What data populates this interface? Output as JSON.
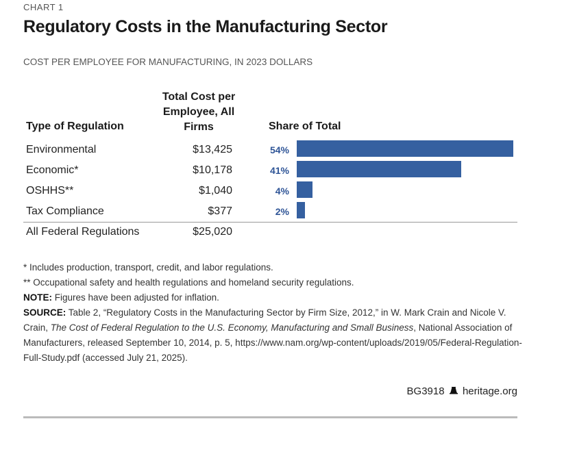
{
  "kicker": "CHART 1",
  "title": "Regulatory Costs in the Manufacturing Sector",
  "subtitle": "COST PER EMPLOYEE FOR MANUFACTURING, IN 2023 DOLLARS",
  "chart_data": {
    "type": "bar",
    "orientation": "horizontal",
    "columns": [
      "Type of Regulation",
      "Total Cost per Employee, All Firms",
      "Share of Total"
    ],
    "categories": [
      "Environmental",
      "Economic*",
      "OSHHS**",
      "Tax Compliance"
    ],
    "costs": [
      "$13,425",
      "$10,178",
      "$1,040",
      "$377"
    ],
    "values": [
      54,
      41,
      4,
      2
    ],
    "value_labels": [
      "54%",
      "41%",
      "4%",
      "2%"
    ],
    "total": {
      "label": "All Federal Regulations",
      "cost": "$25,020"
    },
    "bar_color": "#3560a0"
  },
  "notes": {
    "n1": "* Includes production, transport, credit, and labor regulations.",
    "n2": "** Occupational safety and health regulations and homeland security regulations.",
    "note_label": "NOTE:",
    "note": "Figures have been adjusted for inflation.",
    "source_label": "SOURCE:",
    "source_a": "Table 2, “Regulatory Costs in the Manufacturing Sector by Firm Size, 2012,” in W. Mark Crain and Nicole V. Crain, ",
    "source_italic": "The Cost of Federal Regulation to the U.S. Economy, Manufacturing and Small Business",
    "source_b": ", National Association of Manufacturers, released September 10, 2014, p. 5, https://www.nam.org/wp-content/uploads/2019/05/Federal-Regulation-Full-Study.pdf (accessed July 21, 2025)."
  },
  "footer": {
    "code": "BG3918",
    "site": "heritage.org",
    "icon": "liberty-bell-icon"
  }
}
